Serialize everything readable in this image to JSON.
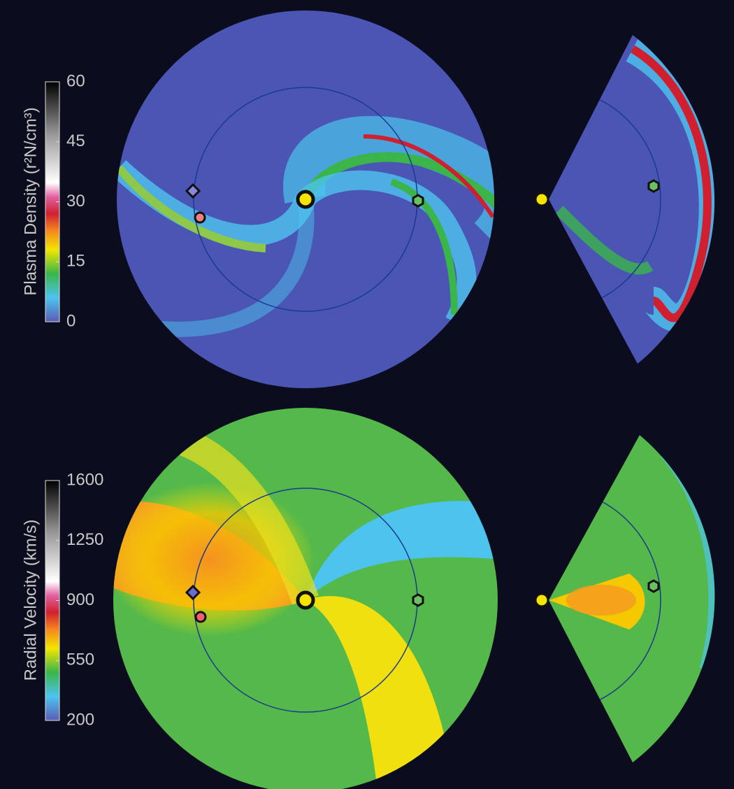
{
  "panels": [
    {
      "colorbar": {
        "label": "Plasma Density (r²N/cm³)",
        "lim": [
          0,
          60
        ],
        "ticks": [
          0,
          15,
          30,
          45,
          60
        ]
      }
    },
    {
      "colorbar": {
        "label": "Radial Velocity (km/s)",
        "lim": [
          200,
          1600
        ],
        "ticks": [
          200,
          550,
          900,
          1250,
          1600
        ]
      }
    }
  ]
}
